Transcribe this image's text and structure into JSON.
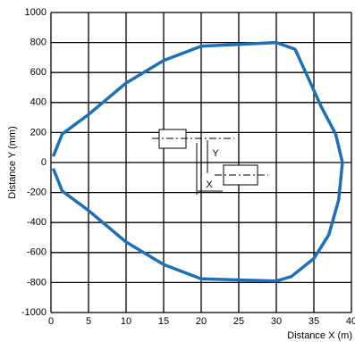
{
  "chart_data": {
    "type": "line",
    "xlabel": "Distance X (m)",
    "ylabel": "Distance Y (mm)",
    "annotations": [
      "X",
      "Y"
    ],
    "x": [
      0.3,
      1.5,
      5,
      10,
      15,
      20,
      30,
      32.5,
      34.1,
      36,
      37.9,
      38.8,
      38.3,
      37,
      35,
      32,
      30,
      20,
      15,
      10,
      5,
      1.5,
      0.3
    ],
    "series": [
      {
        "color": "#1f6fb5",
        "values": [
          40,
          190,
          320,
          530,
          680,
          775,
          800,
          755,
          580,
          370,
          190,
          0,
          -250,
          -480,
          -640,
          -760,
          -790,
          -775,
          -680,
          -530,
          -320,
          -190,
          -40
        ]
      }
    ],
    "xlim": [
      0,
      40
    ],
    "xticks": [
      0,
      5,
      10,
      15,
      20,
      25,
      30,
      35,
      40
    ],
    "ylim": [
      -1000,
      1000
    ],
    "yticks": [
      -1000,
      -800,
      -600,
      -400,
      -200,
      0,
      200,
      400,
      600,
      800,
      1000
    ],
    "grid": true
  }
}
